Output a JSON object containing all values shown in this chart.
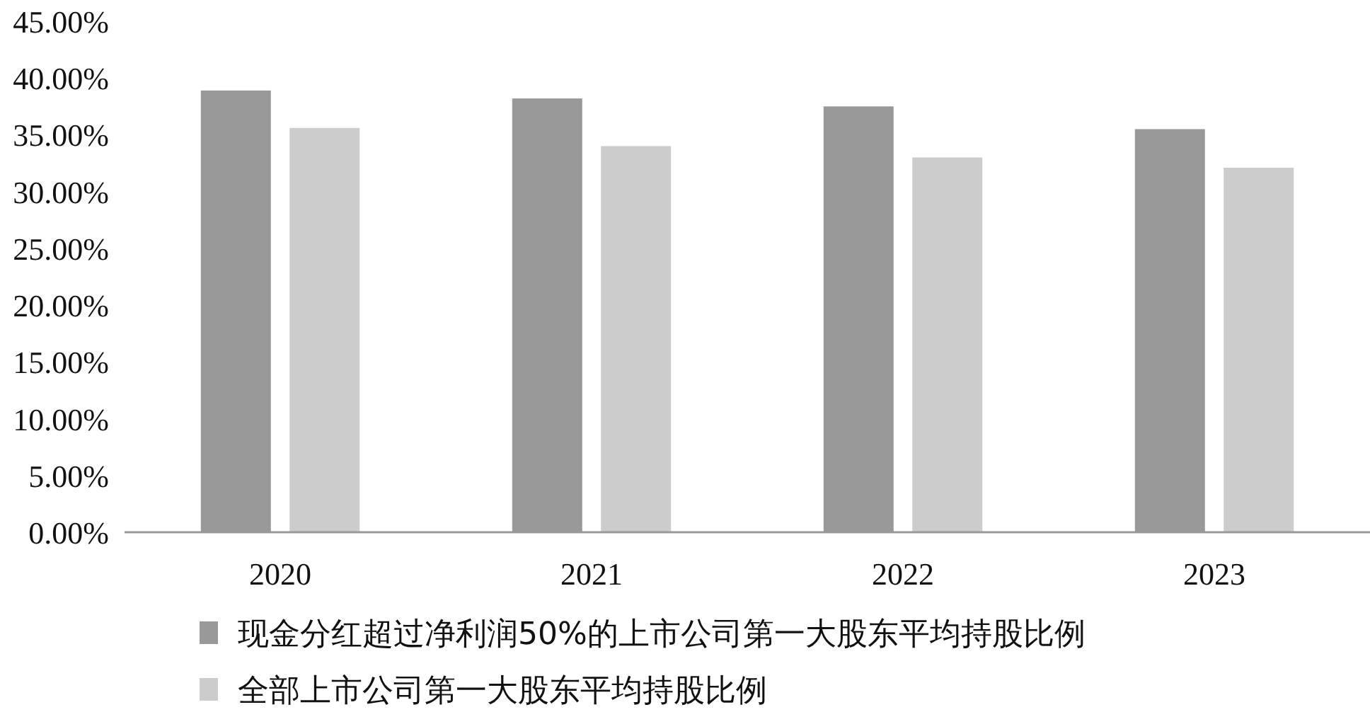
{
  "chart_data": {
    "type": "bar",
    "categories": [
      "2020",
      "2021",
      "2022",
      "2023"
    ],
    "series": [
      {
        "name": "现金分红超过净利润50%的上市公司第一大股东平均持股比例",
        "color": "#999999",
        "values": [
          38.9,
          38.2,
          37.5,
          35.5
        ]
      },
      {
        "name": "全部上市公司第一大股东平均持股比例",
        "color": "#cccccc",
        "values": [
          35.6,
          34.0,
          33.0,
          32.1
        ]
      }
    ],
    "ylim": [
      0,
      45
    ],
    "yticks": [
      {
        "value": 0,
        "label": "0.00%"
      },
      {
        "value": 5,
        "label": "5.00%"
      },
      {
        "value": 10,
        "label": "10.00%"
      },
      {
        "value": 15,
        "label": "15.00%"
      },
      {
        "value": 20,
        "label": "20.00%"
      },
      {
        "value": 25,
        "label": "25.00%"
      },
      {
        "value": 30,
        "label": "30.00%"
      },
      {
        "value": 35,
        "label": "35.00%"
      },
      {
        "value": 40,
        "label": "40.00%"
      },
      {
        "value": 45,
        "label": "45.00%"
      }
    ],
    "legend": "bottom",
    "grid": false
  }
}
